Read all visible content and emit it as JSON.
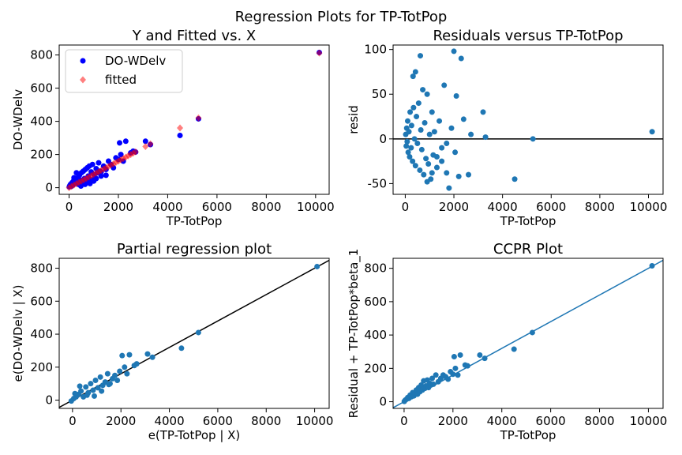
{
  "figure": {
    "suptitle": "Regression Plots for TP-TotPop"
  },
  "chart_data": [
    {
      "type": "scatter",
      "title": "Y and Fitted vs. X",
      "xlabel": "TP-TotPop",
      "ylabel": "DO-WDelv",
      "xlim": [
        -400,
        10550
      ],
      "ylim": [
        -40,
        860
      ],
      "xticks": [
        0,
        2000,
        4000,
        6000,
        8000,
        10000
      ],
      "yticks": [
        0,
        200,
        400,
        600,
        800
      ],
      "legend": "top-left",
      "series": [
        {
          "name": "DO-WDelv",
          "marker": "circle",
          "color": "#0000ff",
          "points": [
            [
              10,
              5
            ],
            [
              30,
              12
            ],
            [
              60,
              20
            ],
            [
              90,
              8
            ],
            [
              120,
              30
            ],
            [
              150,
              15
            ],
            [
              180,
              40
            ],
            [
              220,
              25
            ],
            [
              260,
              50
            ],
            [
              300,
              35
            ],
            [
              350,
              60
            ],
            [
              380,
              20
            ],
            [
              420,
              75
            ],
            [
              460,
              45
            ],
            [
              500,
              90
            ],
            [
              540,
              30
            ],
            [
              580,
              100
            ],
            [
              620,
              55
            ],
            [
              660,
              110
            ],
            [
              700,
              40
            ],
            [
              740,
              120
            ],
            [
              780,
              70
            ],
            [
              820,
              130
            ],
            [
              860,
              50
            ],
            [
              900,
              95
            ],
            [
              950,
              140
            ],
            [
              1000,
              80
            ],
            [
              1050,
              60
            ],
            [
              1100,
              115
            ],
            [
              1150,
              90
            ],
            [
              1200,
              150
            ],
            [
              1250,
              100
            ],
            [
              1300,
              70
            ],
            [
              1400,
              130
            ],
            [
              1500,
              110
            ],
            [
              1600,
              160
            ],
            [
              1700,
              140
            ],
            [
              1800,
              120
            ],
            [
              1900,
              180
            ],
            [
              2000,
              170
            ],
            [
              2050,
              270
            ],
            [
              2100,
              200
            ],
            [
              2200,
              160
            ],
            [
              2300,
              280
            ],
            [
              2500,
              210
            ],
            [
              2600,
              220
            ],
            [
              2700,
              215
            ],
            [
              3100,
              280
            ],
            [
              3300,
              260
            ],
            [
              4500,
              315
            ],
            [
              5250,
              415
            ],
            [
              10150,
              815
            ],
            [
              200,
              60
            ],
            [
              300,
              90
            ],
            [
              400,
              30
            ],
            [
              480,
              10
            ],
            [
              650,
              20
            ],
            [
              850,
              25
            ],
            [
              1000,
              40
            ],
            [
              1100,
              55
            ],
            [
              1300,
              95
            ],
            [
              1500,
              75
            ]
          ]
        },
        {
          "name": "fitted",
          "marker": "diamond",
          "color": "#ff0000",
          "points": [
            [
              0,
              0
            ],
            [
              100,
              8
            ],
            [
              200,
              16
            ],
            [
              300,
              24
            ],
            [
              400,
              32
            ],
            [
              500,
              40
            ],
            [
              600,
              48
            ],
            [
              700,
              56
            ],
            [
              800,
              64
            ],
            [
              900,
              72
            ],
            [
              1000,
              80
            ],
            [
              1100,
              88
            ],
            [
              1200,
              96
            ],
            [
              1300,
              104
            ],
            [
              1400,
              112
            ],
            [
              1500,
              120
            ],
            [
              1600,
              128
            ],
            [
              1700,
              136
            ],
            [
              1800,
              144
            ],
            [
              1900,
              152
            ],
            [
              2000,
              160
            ],
            [
              2100,
              168
            ],
            [
              2200,
              176
            ],
            [
              2300,
              184
            ],
            [
              2400,
              192
            ],
            [
              2500,
              200
            ],
            [
              2600,
              208
            ],
            [
              2700,
              216
            ],
            [
              3100,
              248
            ],
            [
              3300,
              264
            ],
            [
              4500,
              360
            ],
            [
              5250,
              420
            ],
            [
              10150,
              812
            ]
          ]
        }
      ]
    },
    {
      "type": "scatter",
      "title": "Residuals versus TP-TotPop",
      "xlabel": "TP-TotPop",
      "ylabel": "resid",
      "xlim": [
        -500,
        10600
      ],
      "ylim": [
        -62,
        105
      ],
      "xticks": [
        0,
        2000,
        4000,
        6000,
        8000,
        10000
      ],
      "yticks": [
        -50,
        0,
        50,
        100
      ],
      "hline": 0,
      "points": [
        [
          20,
          5
        ],
        [
          40,
          -8
        ],
        [
          60,
          12
        ],
        [
          80,
          -3
        ],
        [
          100,
          20
        ],
        [
          120,
          -15
        ],
        [
          150,
          8
        ],
        [
          180,
          -20
        ],
        [
          200,
          30
        ],
        [
          240,
          -10
        ],
        [
          260,
          15
        ],
        [
          300,
          -25
        ],
        [
          340,
          35
        ],
        [
          380,
          0
        ],
        [
          420,
          -30
        ],
        [
          460,
          25
        ],
        [
          500,
          -5
        ],
        [
          550,
          40
        ],
        [
          600,
          -35
        ],
        [
          640,
          10
        ],
        [
          680,
          -12
        ],
        [
          720,
          55
        ],
        [
          760,
          -40
        ],
        [
          800,
          18
        ],
        [
          850,
          -22
        ],
        [
          900,
          50
        ],
        [
          950,
          -28
        ],
        [
          1000,
          5
        ],
        [
          1050,
          -45
        ],
        [
          1100,
          30
        ],
        [
          1150,
          -18
        ],
        [
          1200,
          8
        ],
        [
          1300,
          -32
        ],
        [
          1400,
          20
        ],
        [
          1500,
          -25
        ],
        [
          1600,
          60
        ],
        [
          1700,
          -38
        ],
        [
          1800,
          -55
        ],
        [
          1900,
          12
        ],
        [
          2000,
          98
        ],
        [
          2050,
          -15
        ],
        [
          2100,
          48
        ],
        [
          2200,
          -42
        ],
        [
          2300,
          90
        ],
        [
          2400,
          22
        ],
        [
          2600,
          -40
        ],
        [
          2700,
          5
        ],
        [
          3200,
          30
        ],
        [
          3300,
          2
        ],
        [
          4500,
          -45
        ],
        [
          5250,
          0
        ],
        [
          10150,
          8
        ],
        [
          320,
          70
        ],
        [
          420,
          75
        ],
        [
          620,
          93
        ],
        [
          900,
          -48
        ],
        [
          1100,
          -38
        ],
        [
          1300,
          -20
        ],
        [
          1500,
          -10
        ],
        [
          1700,
          -5
        ]
      ]
    },
    {
      "type": "scatter",
      "title": "Partial regression plot",
      "xlabel": "e(TP-TotPop | X)",
      "ylabel": "e(DO-WDelv  | X)",
      "xlim": [
        -550,
        10600
      ],
      "ylim": [
        -50,
        860
      ],
      "xticks": [
        0,
        2000,
        4000,
        6000,
        8000,
        10000
      ],
      "yticks": [
        0,
        200,
        400,
        600,
        800
      ],
      "fit_line": [
        [
          -550,
          -44
        ],
        [
          10600,
          848
        ]
      ],
      "points": [
        [
          -50,
          -5
        ],
        [
          50,
          10
        ],
        [
          150,
          20
        ],
        [
          250,
          35
        ],
        [
          350,
          55
        ],
        [
          450,
          20
        ],
        [
          550,
          80
        ],
        [
          650,
          45
        ],
        [
          750,
          100
        ],
        [
          850,
          60
        ],
        [
          950,
          120
        ],
        [
          1050,
          75
        ],
        [
          1150,
          140
        ],
        [
          1250,
          90
        ],
        [
          1350,
          110
        ],
        [
          1450,
          160
        ],
        [
          1550,
          100
        ],
        [
          1650,
          130
        ],
        [
          1750,
          150
        ],
        [
          1850,
          120
        ],
        [
          1950,
          175
        ],
        [
          2050,
          270
        ],
        [
          2150,
          200
        ],
        [
          2250,
          160
        ],
        [
          2350,
          275
        ],
        [
          2550,
          210
        ],
        [
          2650,
          220
        ],
        [
          3100,
          280
        ],
        [
          3300,
          260
        ],
        [
          4500,
          315
        ],
        [
          5200,
          410
        ],
        [
          10100,
          810
        ],
        [
          100,
          40
        ],
        [
          300,
          85
        ],
        [
          600,
          30
        ],
        [
          900,
          25
        ],
        [
          1200,
          55
        ],
        [
          1500,
          95
        ]
      ]
    },
    {
      "type": "scatter",
      "title": "CCPR Plot",
      "xlabel": "TP-TotPop",
      "ylabel": "Residual + TP-TotPop*beta_1",
      "xlim": [
        -450,
        10600
      ],
      "ylim": [
        -40,
        860
      ],
      "xticks": [
        0,
        2000,
        4000,
        6000,
        8000,
        10000
      ],
      "yticks": [
        0,
        200,
        400,
        600,
        800
      ],
      "fit_line": [
        [
          -450,
          -36
        ],
        [
          10600,
          848
        ]
      ],
      "line_color": "#1f77b4",
      "points": [
        [
          10,
          2
        ],
        [
          50,
          10
        ],
        [
          100,
          15
        ],
        [
          150,
          25
        ],
        [
          200,
          20
        ],
        [
          250,
          40
        ],
        [
          300,
          30
        ],
        [
          350,
          55
        ],
        [
          400,
          35
        ],
        [
          450,
          50
        ],
        [
          500,
          70
        ],
        [
          550,
          45
        ],
        [
          600,
          85
        ],
        [
          650,
          60
        ],
        [
          700,
          100
        ],
        [
          750,
          70
        ],
        [
          800,
          125
        ],
        [
          850,
          80
        ],
        [
          900,
          95
        ],
        [
          950,
          130
        ],
        [
          1000,
          85
        ],
        [
          1050,
          110
        ],
        [
          1100,
          100
        ],
        [
          1150,
          140
        ],
        [
          1200,
          105
        ],
        [
          1300,
          160
        ],
        [
          1400,
          120
        ],
        [
          1500,
          140
        ],
        [
          1600,
          160
        ],
        [
          1700,
          150
        ],
        [
          1800,
          135
        ],
        [
          1900,
          180
        ],
        [
          2000,
          165
        ],
        [
          2050,
          270
        ],
        [
          2100,
          200
        ],
        [
          2200,
          160
        ],
        [
          2300,
          280
        ],
        [
          2500,
          220
        ],
        [
          2600,
          215
        ],
        [
          3100,
          280
        ],
        [
          3300,
          260
        ],
        [
          4500,
          315
        ],
        [
          5250,
          415
        ],
        [
          10150,
          815
        ]
      ]
    }
  ]
}
